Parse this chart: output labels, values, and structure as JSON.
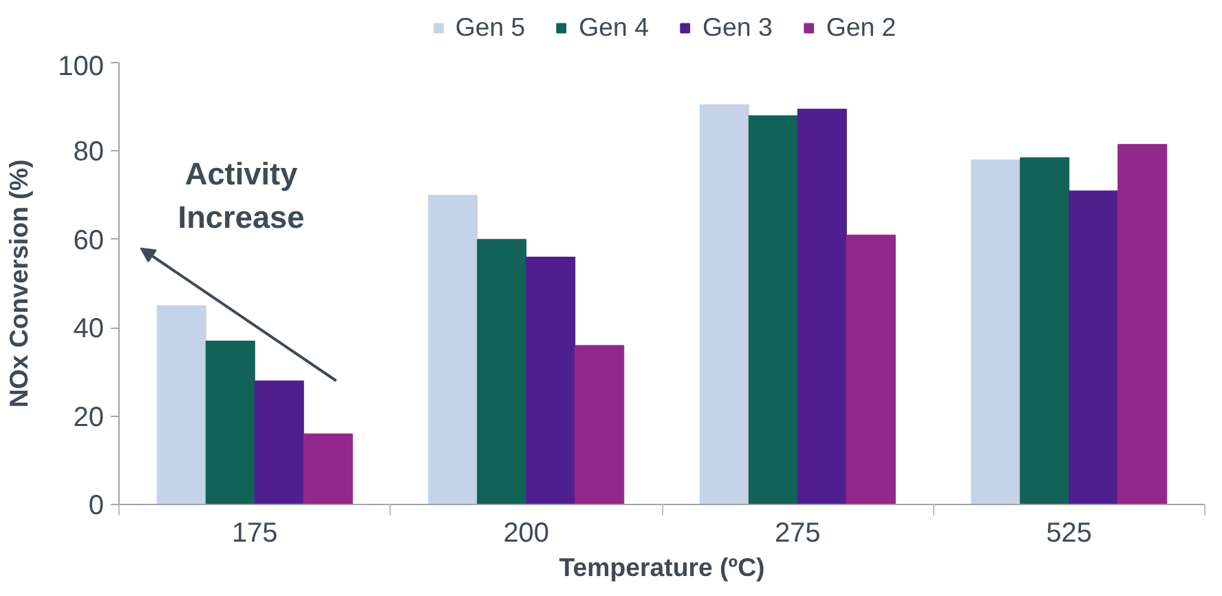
{
  "chart_data": {
    "type": "bar",
    "xlabel": "Temperature (ºC)",
    "ylabel": "NOx Conversion (%)",
    "categories": [
      "175",
      "200",
      "275",
      "525"
    ],
    "series": [
      {
        "name": "Gen 5",
        "color": "#c5d3e8",
        "values": [
          45,
          70,
          90.5,
          78
        ]
      },
      {
        "name": "Gen 4",
        "color": "#116257",
        "values": [
          37,
          60,
          88,
          78.5
        ]
      },
      {
        "name": "Gen 3",
        "color": "#4f1f8f",
        "values": [
          28,
          56,
          89.5,
          71
        ]
      },
      {
        "name": "Gen 2",
        "color": "#92288c",
        "values": [
          16,
          36,
          61,
          81.5
        ]
      }
    ],
    "ylim": [
      0,
      100
    ],
    "yticks": [
      0,
      20,
      40,
      60,
      80,
      100
    ],
    "annotations": [
      "Activity Increase"
    ],
    "legend": "top",
    "grid": false
  }
}
